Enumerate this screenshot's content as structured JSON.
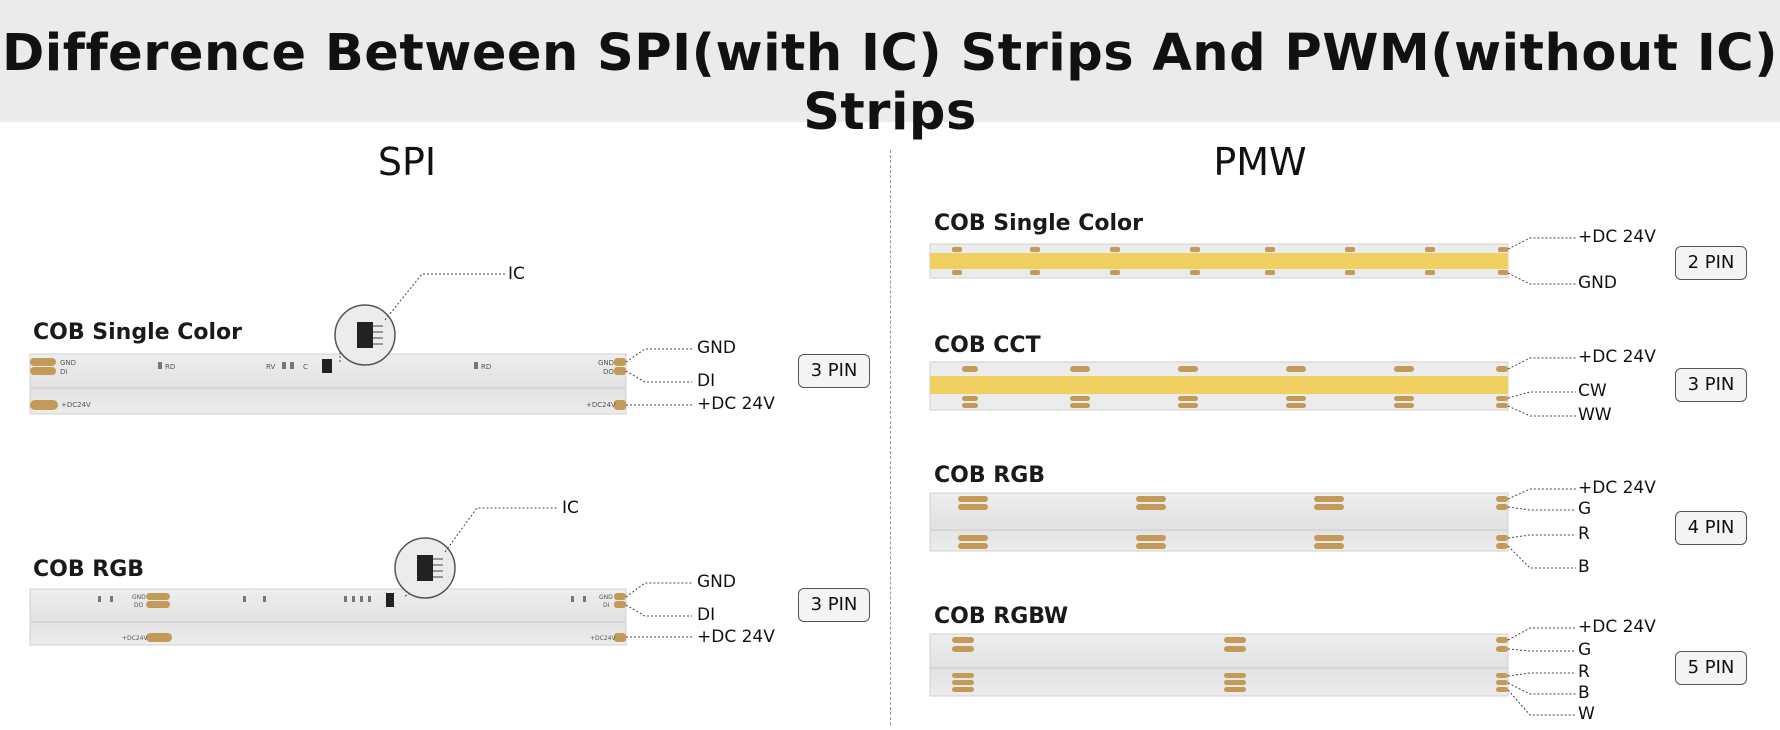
{
  "title": "Difference Between SPI(with IC) Strips And PWM(without IC) Strips",
  "spi": {
    "heading": "SPI",
    "strips": [
      {
        "name": "COB Single Color",
        "chip_label": "IC",
        "pins": [
          "GND",
          "DI",
          "+DC 24V"
        ],
        "badge": "3 PIN",
        "pad_labels": [
          "GND",
          "DI",
          "RD",
          "RV",
          "C",
          "RD",
          "GND",
          "DO",
          "+DC24V",
          "+DC24V"
        ]
      },
      {
        "name": "COB RGB",
        "chip_label": "IC",
        "pins": [
          "GND",
          "DI",
          "+DC 24V"
        ],
        "badge": "3 PIN",
        "pad_labels": [
          "GND",
          "DO",
          "GND",
          "DI",
          "+DC24V",
          "+DC24V"
        ]
      }
    ]
  },
  "pwm": {
    "heading": "PMW",
    "strips": [
      {
        "name": "COB Single Color",
        "pins": [
          "+DC 24V",
          "GND"
        ],
        "badge": "2 PIN"
      },
      {
        "name": "COB CCT",
        "pins": [
          "+DC 24V",
          "CW",
          "WW"
        ],
        "badge": "3 PIN"
      },
      {
        "name": "COB RGB",
        "pins": [
          "+DC 24V",
          "G",
          "R",
          "B"
        ],
        "badge": "4 PIN"
      },
      {
        "name": "COB RGBW",
        "pins": [
          "+DC 24V",
          "G",
          "R",
          "B",
          "W"
        ],
        "badge": "5 PIN"
      }
    ]
  },
  "colors": {
    "banner": "#ebebeb",
    "strip_body": "#e6e6e6",
    "copper_pad": "#c49a58",
    "yellow_led": "#f0d060",
    "lead_line": "#444444"
  }
}
